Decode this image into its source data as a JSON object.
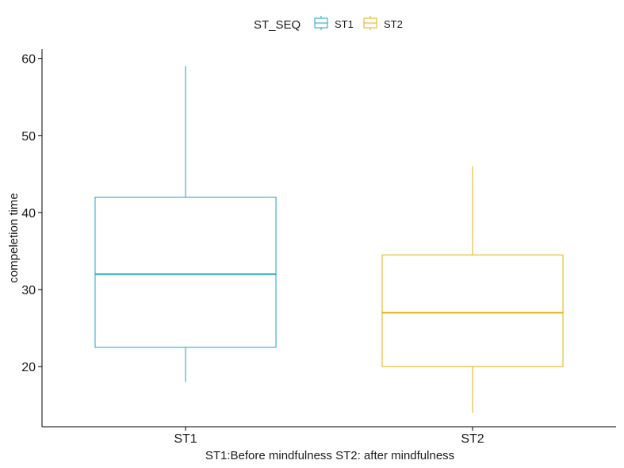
{
  "chart_data": {
    "type": "box",
    "xlabel": "ST1:Before mindfulness ST2: after mindfulness",
    "ylabel": "compeletion time",
    "ylim": [
      12.2,
      61.2
    ],
    "yticks": [
      20,
      30,
      40,
      50,
      60
    ],
    "categories": [
      "ST1",
      "ST2"
    ],
    "legend": {
      "title": "ST_SEQ",
      "position": "top",
      "entries": [
        "ST1",
        "ST2"
      ]
    },
    "grid": false,
    "series": [
      {
        "name": "ST1",
        "color": "#1aa3bf",
        "min": 18,
        "q1": 22.5,
        "median": 32,
        "q3": 42,
        "max": 59
      },
      {
        "name": "ST2",
        "color": "#e0b00c",
        "min": 14,
        "q1": 20,
        "median": 27,
        "q3": 34.5,
        "max": 46
      }
    ]
  }
}
